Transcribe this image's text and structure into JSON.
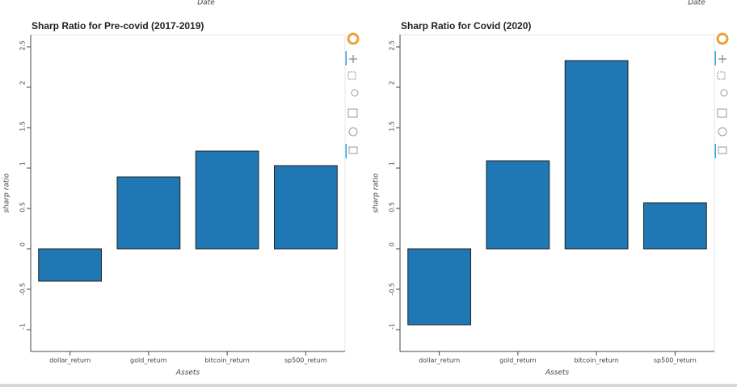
{
  "partial_labels": [
    "Date",
    "Date"
  ],
  "chart_data": [
    {
      "type": "bar",
      "title": "Sharp Ratio for Pre-covid (2017-2019)",
      "x_label": "Assets",
      "y_label": "sharp ratio",
      "categories": [
        "dollar_return",
        "gold_return",
        "bitcoin_return",
        "sp500_return"
      ],
      "values": [
        -0.4,
        0.89,
        1.21,
        1.03
      ],
      "color": "#1f77b4",
      "ylim": [
        -1.27,
        2.65
      ],
      "yticks": [
        -1,
        -0.5,
        0,
        0.5,
        1,
        1.5,
        2,
        2.5
      ]
    },
    {
      "type": "bar",
      "title": "Sharp Ratio for Covid (2020)",
      "x_label": "Assets",
      "y_label": "sharp ratio",
      "categories": [
        "dollar_return",
        "gold_return",
        "bitcoin_return",
        "sp500_return"
      ],
      "values": [
        -0.94,
        1.09,
        2.33,
        0.57
      ],
      "color": "#1f77b4",
      "ylim": [
        -1.27,
        2.65
      ],
      "yticks": [
        -1,
        -0.5,
        0,
        0.5,
        1,
        1.5,
        2,
        2.5
      ]
    }
  ]
}
